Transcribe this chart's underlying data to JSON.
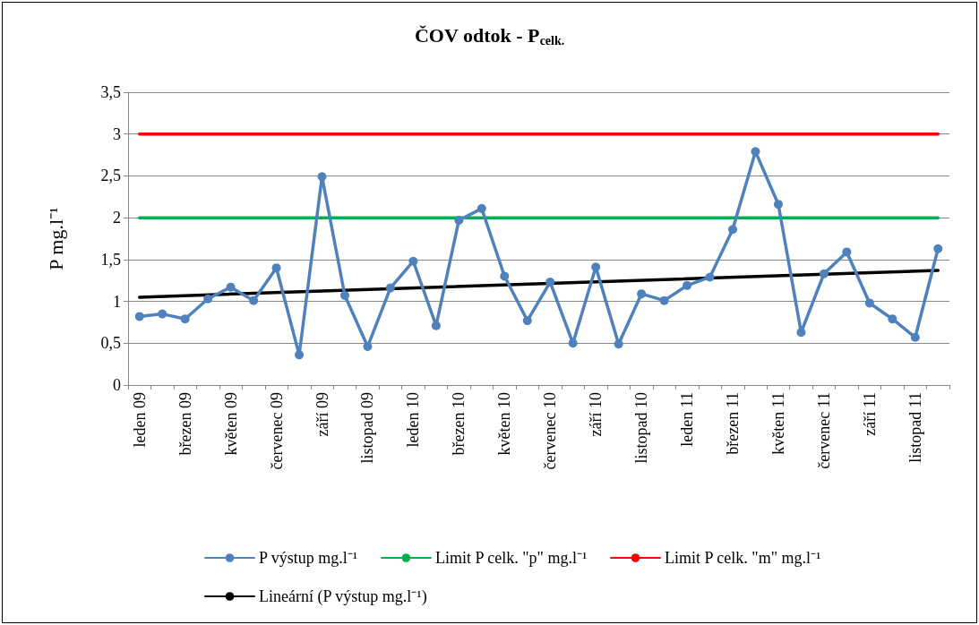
{
  "chart_data": {
    "type": "line",
    "title": "ČOV odtok - P$_{celk.}$",
    "ylabel": "P mg.l⁻¹",
    "categories": [
      "leden 09",
      null,
      "březen 09",
      null,
      "květen 09",
      null,
      "červenec 09",
      null,
      "září 09",
      null,
      "listopad 09",
      null,
      "leden 10",
      null,
      "březen 10",
      null,
      "květen 10",
      null,
      "červenec 10",
      null,
      "září 10",
      null,
      "listopad 10",
      null,
      "leden 11",
      null,
      "březen 11",
      null,
      "květen 11",
      null,
      "červenec 11",
      null,
      "září 11",
      null,
      "listopad 11",
      null
    ],
    "series": [
      {
        "name": "P výstup mg.l⁻¹",
        "color": "#4f81bd",
        "marker": "circle",
        "values": [
          0.82,
          0.85,
          0.79,
          1.03,
          1.17,
          1.01,
          1.4,
          0.36,
          2.49,
          1.07,
          0.46,
          1.16,
          1.48,
          0.71,
          1.97,
          2.11,
          1.3,
          0.77,
          1.23,
          0.5,
          1.41,
          0.49,
          1.09,
          1.01,
          1.19,
          1.29,
          1.86,
          2.79,
          2.16,
          0.63,
          1.33,
          1.59,
          0.98,
          0.79,
          0.57,
          1.63
        ]
      },
      {
        "name": "Limit P celk. \"p\" mg.l⁻¹",
        "color": "#00b050",
        "marker": "none",
        "values": [
          2,
          2,
          2,
          2,
          2,
          2,
          2,
          2,
          2,
          2,
          2,
          2,
          2,
          2,
          2,
          2,
          2,
          2,
          2,
          2,
          2,
          2,
          2,
          2,
          2,
          2,
          2,
          2,
          2,
          2,
          2,
          2,
          2,
          2,
          2,
          2
        ]
      },
      {
        "name": "Limit P celk. \"m\" mg.l⁻¹",
        "color": "#ff0000",
        "marker": "none",
        "values": [
          3,
          3,
          3,
          3,
          3,
          3,
          3,
          3,
          3,
          3,
          3,
          3,
          3,
          3,
          3,
          3,
          3,
          3,
          3,
          3,
          3,
          3,
          3,
          3,
          3,
          3,
          3,
          3,
          3,
          3,
          3,
          3,
          3,
          3,
          3,
          3
        ]
      },
      {
        "name": "Lineární (P výstup mg.l⁻¹)",
        "color": "#000000",
        "marker": "none",
        "values": [
          1.05,
          null,
          null,
          null,
          null,
          null,
          null,
          null,
          null,
          null,
          null,
          null,
          null,
          null,
          null,
          null,
          null,
          null,
          null,
          null,
          null,
          null,
          null,
          null,
          null,
          null,
          null,
          null,
          null,
          null,
          null,
          null,
          null,
          null,
          null,
          1.37
        ]
      }
    ],
    "ylim": [
      0,
      3.5
    ],
    "yticks": [
      0,
      {
        "value": 0.5,
        "label": "0,5"
      },
      1,
      {
        "value": 1.5,
        "label": "1,5"
      },
      2,
      {
        "value": 2.5,
        "label": "2,5"
      },
      3,
      {
        "value": 3.5,
        "label": "3,5"
      }
    ],
    "grid": "y",
    "legend": "bottom",
    "line_style": "solid"
  }
}
